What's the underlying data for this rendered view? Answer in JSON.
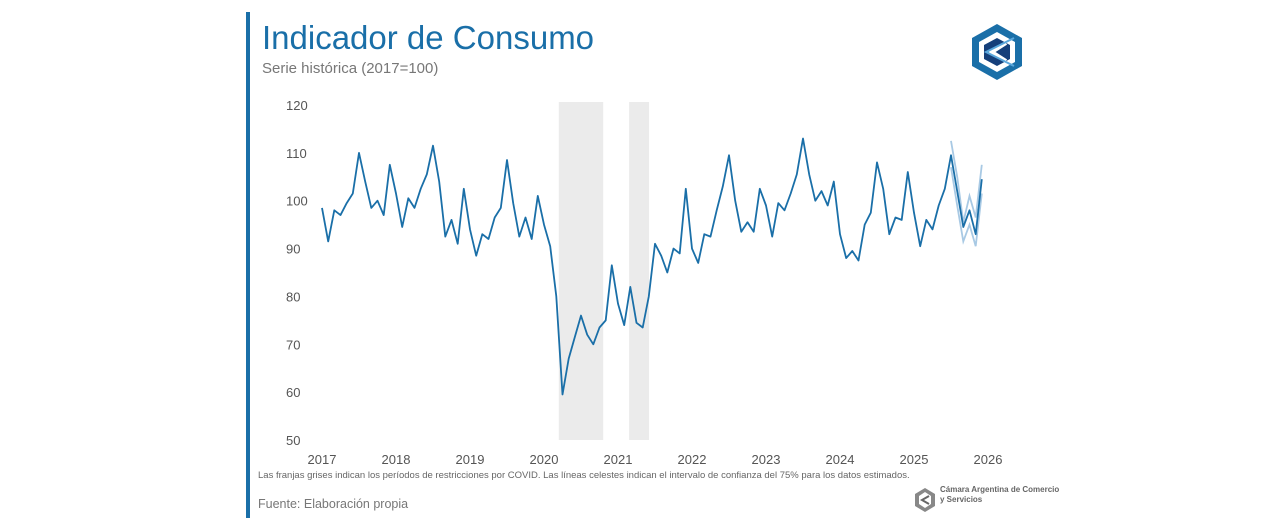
{
  "header": {
    "title": "Indicador de Consumo",
    "subtitle": "Serie histórica (2017=100)"
  },
  "colors": {
    "accent": "#1a6fa8",
    "series_line": "#1a6fa8",
    "confidence_band": "#a8c9e4",
    "covid_band": "#ebebeb"
  },
  "footer": {
    "note": "Las franjas grises indican los períodos de restricciones por COVID. Las líneas celestes indican el intervalo de confianza del 75% para los datos estimados.",
    "source": "Fuente: Elaboración propia",
    "org_name": "Cámara Argentina de Comercio y Servicios"
  },
  "logos": {
    "top_right": "cac-logo-icon",
    "bottom_right": "cac-small-logo-icon"
  },
  "chart_data": {
    "type": "line",
    "title": "Indicador de Consumo",
    "subtitle": "Serie histórica (2017=100)",
    "ylim": [
      50,
      120
    ],
    "yticks": [
      50,
      60,
      70,
      80,
      90,
      100,
      110,
      120
    ],
    "xlim": [
      2017.0,
      2026.0
    ],
    "xticks": [
      "2017",
      "2018",
      "2019",
      "2020",
      "2021",
      "2022",
      "2023",
      "2024",
      "2025",
      "2026"
    ],
    "grid": false,
    "shaded_periods": [
      {
        "start": 2020.2,
        "end": 2020.8
      },
      {
        "start": 2021.15,
        "end": 2021.42
      }
    ],
    "series": [
      {
        "start": "2017-01",
        "values": [
          98.5,
          91.5,
          98.0,
          97.0,
          99.5,
          101.5,
          110.0,
          104.0,
          98.5,
          100.0,
          97.0,
          107.5,
          101.5,
          94.5,
          100.5,
          98.5,
          102.5,
          105.5,
          111.5,
          104.0,
          92.5,
          96.0,
          91.0,
          102.5,
          94.0,
          88.5,
          93.0,
          92.0,
          96.5,
          98.5,
          108.5,
          99.5,
          92.5,
          96.5,
          92.0,
          101.0,
          95.0,
          90.5,
          80.0,
          59.5,
          67.0,
          71.5,
          76.0,
          72.0,
          70.0,
          73.5,
          75.0,
          86.5,
          78.5,
          74.0,
          82.0,
          74.5,
          73.5,
          80.0,
          91.0,
          88.5,
          85.0,
          90.0,
          89.0,
          102.5,
          90.0,
          87.0,
          93.0,
          92.5,
          98.0,
          103.0,
          109.5,
          100.0,
          93.5,
          95.5,
          93.5,
          102.5,
          99.0,
          92.5,
          99.5,
          98.0,
          101.5,
          105.5,
          113.0,
          105.5,
          100.0,
          102.0,
          99.0,
          104.0,
          93.0,
          88.0,
          89.5,
          87.5,
          95.0,
          97.5,
          108.0,
          102.5,
          93.0,
          96.5,
          96.0,
          106.0,
          97.5,
          90.5,
          96.0,
          94.0,
          99.0,
          102.5,
          109.5,
          102.0,
          94.5,
          98.0,
          93.0,
          104.5
        ]
      }
    ],
    "confidence_interval": {
      "start": "2025-07",
      "upper": [
        112.5,
        105.0,
        95.5,
        101.0,
        96.5,
        107.5
      ],
      "lower": [
        107.0,
        99.0,
        91.5,
        95.0,
        90.5,
        101.5
      ]
    }
  }
}
